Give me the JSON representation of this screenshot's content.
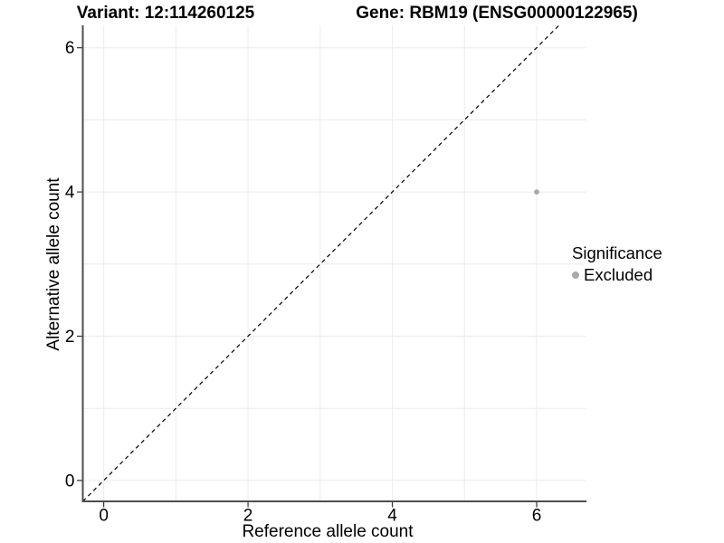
{
  "header": {
    "variant_title": "Variant: 12:114260125",
    "gene_title": "Gene: RBM19 (ENSG00000122965)"
  },
  "legend": {
    "title": "Significance",
    "items": [
      {
        "label": "Excluded",
        "color": "#a9a9a9"
      }
    ]
  },
  "chart_data": {
    "type": "scatter",
    "title": "",
    "xlabel": "Reference allele count",
    "ylabel": "Alternative allele count",
    "xlim": [
      -0.29,
      6.69
    ],
    "ylim": [
      -0.29,
      6.31
    ],
    "x_ticks": [
      0,
      2,
      4,
      6
    ],
    "y_ticks": [
      0,
      2,
      4,
      6
    ],
    "grid_lines": [
      0,
      1,
      2,
      3,
      4,
      5,
      6
    ],
    "grid": true,
    "legend_position": "right",
    "series": [
      {
        "name": "Excluded",
        "color": "#a9a9a9",
        "points": [
          {
            "x": 6,
            "y": 4
          }
        ]
      }
    ],
    "reference_line": {
      "type": "identity y=x",
      "style": "dashed",
      "color": "#000000"
    },
    "colors": {
      "background": "#ffffff",
      "grid": "#ebebeb",
      "axis": "#4d4d4d",
      "tick": "#333333",
      "text": "#000000"
    }
  }
}
